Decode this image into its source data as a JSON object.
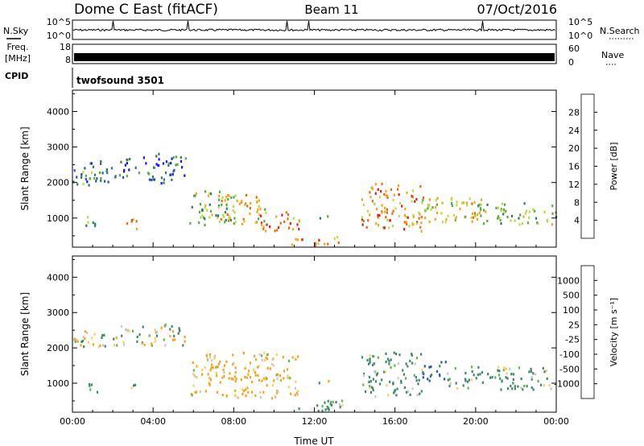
{
  "header": {
    "station": "Dome C East (fitACF)",
    "beam": "Beam 11",
    "date": "07/Oct/2016"
  },
  "side_labels": {
    "nsky": "N.Sky",
    "freq_line1": "Freq.",
    "freq_line2": "[MHz]",
    "cpid": "CPID",
    "nsearch": "N.Search",
    "nave": "Nave"
  },
  "strip_ticks": {
    "nsky_left": [
      "10^5",
      "10^0"
    ],
    "nsky_right": [
      "10^5",
      "10^0"
    ],
    "freq_left": [
      "18",
      "8"
    ],
    "nave_right": [
      "60",
      "0"
    ]
  },
  "cpid_text": "twofsound 3501",
  "colors": {
    "power": [
      "#1414ff",
      "#2a54b4",
      "#307a64",
      "#58a848",
      "#b8dc40",
      "#f4a414",
      "#ec6a0c",
      "#dc1e14"
    ],
    "velocity": [
      "#e01a14",
      "#ee5a10",
      "#f4a41a",
      "#f6d060",
      "#c8c8c8",
      "#60b84a",
      "#3e8a68",
      "#2a5ab0",
      "#2040c0"
    ]
  },
  "chart_data": [
    {
      "type": "heatmap",
      "title": "",
      "ylabel": "Slant Range [km]",
      "xlabel": "",
      "x_ticks": [
        "00:00",
        "04:00",
        "08:00",
        "12:00",
        "16:00",
        "20:00",
        "00:00"
      ],
      "xlim": [
        0,
        24
      ],
      "y_ticks": [
        "1000",
        "2000",
        "3000",
        "4000"
      ],
      "ylim": [
        180,
        4600
      ],
      "colorbar": {
        "label": "Power [dB]",
        "tick_labels": [
          "4",
          "8",
          "12",
          "16",
          "20",
          "24",
          "28"
        ],
        "range": [
          0,
          32
        ]
      },
      "regions": [
        {
          "t0": 0.0,
          "t1": 1.2,
          "r0": 1800,
          "r1": 2600,
          "value": 10
        },
        {
          "t0": 0.9,
          "t1": 2.0,
          "r0": 2050,
          "r1": 2650,
          "value": 9
        },
        {
          "t0": 2.0,
          "t1": 3.3,
          "r0": 2150,
          "r1": 2700,
          "value": 8
        },
        {
          "t0": 3.3,
          "t1": 5.6,
          "r0": 2000,
          "r1": 2850,
          "value": 7
        },
        {
          "t0": 0.5,
          "t1": 1.4,
          "r0": 780,
          "r1": 1100,
          "value": 14
        },
        {
          "t0": 2.6,
          "t1": 3.2,
          "r0": 720,
          "r1": 1150,
          "value": 24
        },
        {
          "t0": 5.8,
          "t1": 8.0,
          "r0": 800,
          "r1": 1800,
          "value": 15
        },
        {
          "t0": 7.0,
          "t1": 9.6,
          "r0": 850,
          "r1": 1700,
          "value": 20
        },
        {
          "t0": 9.3,
          "t1": 11.4,
          "r0": 650,
          "r1": 1200,
          "value": 26
        },
        {
          "t0": 10.8,
          "t1": 13.2,
          "r0": 250,
          "r1": 520,
          "value": 24
        },
        {
          "t0": 12.0,
          "t1": 13.0,
          "r0": 1000,
          "r1": 1100,
          "value": 13
        },
        {
          "t0": 14.3,
          "t1": 17.4,
          "r0": 650,
          "r1": 2000,
          "value": 24
        },
        {
          "t0": 17.0,
          "t1": 20.4,
          "r0": 850,
          "r1": 1600,
          "value": 19
        },
        {
          "t0": 20.0,
          "t1": 24.0,
          "r0": 850,
          "r1": 1450,
          "value": 15
        }
      ]
    },
    {
      "type": "heatmap",
      "title": "",
      "ylabel": "Slant Range [km]",
      "xlabel": "Time UT",
      "x_ticks": [
        "00:00",
        "04:00",
        "08:00",
        "12:00",
        "16:00",
        "20:00",
        "00:00"
      ],
      "xlim": [
        0,
        24
      ],
      "y_ticks": [
        "1000",
        "2000",
        "3000",
        "4000"
      ],
      "ylim": [
        180,
        4600
      ],
      "colorbar": {
        "label": "Velocity [m s^-1]",
        "tick_labels": [
          "1000",
          "500",
          "100",
          "25",
          "-25",
          "-100",
          "-500",
          "-1000"
        ],
        "range": [
          -1000,
          1000
        ]
      },
      "regions": [
        {
          "t0": 0.0,
          "t1": 2.2,
          "r0": 2000,
          "r1": 2500,
          "value": 0
        },
        {
          "t0": 2.0,
          "t1": 5.6,
          "r0": 2100,
          "r1": 2700,
          "value": 5
        },
        {
          "t0": 0.6,
          "t1": 1.4,
          "r0": 750,
          "r1": 1050,
          "value": 150
        },
        {
          "t0": 2.5,
          "t1": 3.1,
          "r0": 750,
          "r1": 1000,
          "value": -60
        },
        {
          "t0": 5.8,
          "t1": 11.2,
          "r0": 600,
          "r1": 1900,
          "value": -200
        },
        {
          "t0": 10.6,
          "t1": 13.4,
          "r0": 230,
          "r1": 560,
          "value": 150
        },
        {
          "t0": 12.0,
          "t1": 13.0,
          "r0": 1000,
          "r1": 1100,
          "value": 0
        },
        {
          "t0": 14.3,
          "t1": 17.5,
          "r0": 650,
          "r1": 1900,
          "value": 200
        },
        {
          "t0": 17.3,
          "t1": 18.6,
          "r0": 1100,
          "r1": 1700,
          "value": 700
        },
        {
          "t0": 18.5,
          "t1": 24.0,
          "r0": 850,
          "r1": 1500,
          "value": 180
        }
      ]
    }
  ]
}
